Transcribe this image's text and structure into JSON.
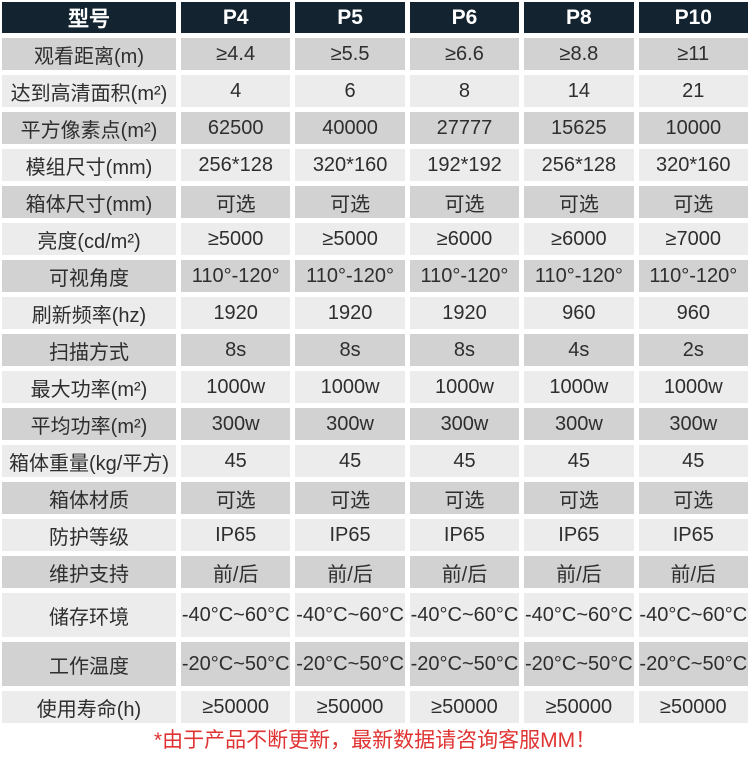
{
  "table": {
    "header": {
      "model_label": "型号",
      "columns": [
        "P4",
        "P5",
        "P6",
        "P8",
        "P10"
      ]
    },
    "rows": [
      {
        "label": "观看距离(m)",
        "values": [
          "≥4.4",
          "≥5.5",
          "≥6.6",
          "≥8.8",
          "≥11"
        ]
      },
      {
        "label": "达到高清面积(m²)",
        "values": [
          "4",
          "6",
          "8",
          "14",
          "21"
        ]
      },
      {
        "label": "平方像素点(m²)",
        "values": [
          "62500",
          "40000",
          "27777",
          "15625",
          "10000"
        ]
      },
      {
        "label": "模组尺寸(mm)",
        "values": [
          "256*128",
          "320*160",
          "192*192",
          "256*128",
          "320*160"
        ]
      },
      {
        "label": "箱体尺寸(mm)",
        "values": [
          "可选",
          "可选",
          "可选",
          "可选",
          "可选"
        ]
      },
      {
        "label": "亮度(cd/m²)",
        "values": [
          "≥5000",
          "≥5000",
          "≥6000",
          "≥6000",
          "≥7000"
        ]
      },
      {
        "label": "可视角度",
        "values": [
          "110°-120°",
          "110°-120°",
          "110°-120°",
          "110°-120°",
          "110°-120°"
        ]
      },
      {
        "label": "刷新频率(hz)",
        "values": [
          "1920",
          "1920",
          "1920",
          "960",
          "960"
        ]
      },
      {
        "label": "扫描方式",
        "values": [
          "8s",
          "8s",
          "8s",
          "4s",
          "2s"
        ]
      },
      {
        "label": "最大功率(m²)",
        "values": [
          "1000w",
          "1000w",
          "1000w",
          "1000w",
          "1000w"
        ]
      },
      {
        "label": "平均功率(m²)",
        "values": [
          "300w",
          "300w",
          "300w",
          "300w",
          "300w"
        ]
      },
      {
        "label": "箱体重量(kg/平方)",
        "values": [
          "45",
          "45",
          "45",
          "45",
          "45"
        ]
      },
      {
        "label": "箱体材质",
        "values": [
          "可选",
          "可选",
          "可选",
          "可选",
          "可选"
        ]
      },
      {
        "label": "防护等级",
        "values": [
          "IP65",
          "IP65",
          "IP65",
          "IP65",
          "IP65"
        ]
      },
      {
        "label": "维护支持",
        "values": [
          "前/后",
          "前/后",
          "前/后",
          "前/后",
          "前/后"
        ]
      },
      {
        "label": "储存环境",
        "values": [
          "-40°C~60°C",
          "-40°C~60°C",
          "-40°C~60°C",
          "-40°C~60°C",
          "-40°C~60°C"
        ],
        "tall": true
      },
      {
        "label": "工作温度",
        "values": [
          "-20°C~50°C",
          "-20°C~50°C",
          "-20°C~50°C",
          "-20°C~50°C",
          "-20°C~50°C"
        ],
        "tall": true
      },
      {
        "label": "使用寿命(h)",
        "values": [
          "≥50000",
          "≥50000",
          "≥50000",
          "≥50000",
          "≥50000"
        ]
      }
    ],
    "footer_note": "*由于产品不断更新，最新数据请咨询客服MM！"
  },
  "colors": {
    "header_bg": "#132430",
    "header_text": "#ffffff",
    "row_gray": "#d2d2d2",
    "row_light": "#ececec",
    "gutter": "#ffffff",
    "cell_text": "#2e2e2e",
    "footnote_red": "#e03333"
  }
}
